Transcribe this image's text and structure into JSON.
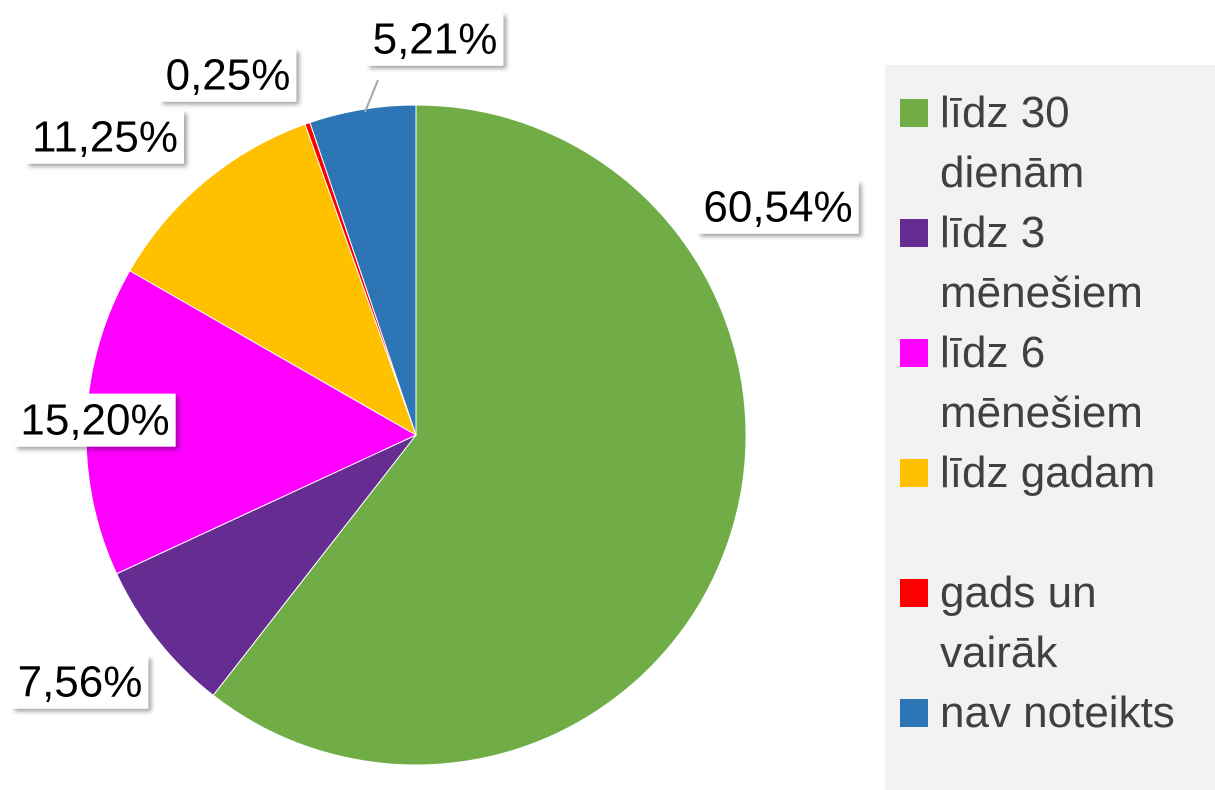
{
  "chart_data": {
    "type": "pie",
    "categories": [
      "līdz 30 dienām",
      "līdz 3 mēnešiem",
      "līdz 6 mēnešiem",
      "līdz gadam",
      "gads un vairāk",
      "nav noteikts"
    ],
    "values": [
      60.54,
      7.56,
      15.2,
      11.25,
      0.25,
      5.21
    ],
    "value_labels": [
      "60,54%",
      "7,56%",
      "15,20%",
      "11,25%",
      "0,25%",
      "5,21%"
    ],
    "colors": [
      "#70ad47",
      "#652d91",
      "#ff00ff",
      "#ffc000",
      "#ff0000",
      "#2e75b6"
    ],
    "legend": "right"
  }
}
